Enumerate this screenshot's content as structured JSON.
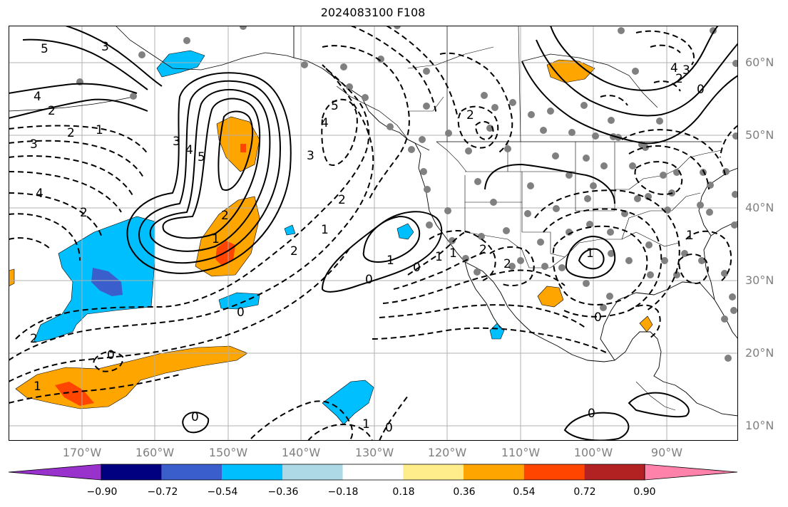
{
  "title": "2024083100 F108",
  "lat_labels": [
    "60°N",
    "50°N",
    "40°N",
    "30°N",
    "20°N",
    "10°N"
  ],
  "lon_labels": [
    "170°W",
    "160°W",
    "150°W",
    "140°W",
    "130°W",
    "120°W",
    "110°W",
    "100°W",
    "90°W"
  ],
  "colorbar": {
    "tick_labels": [
      "−0.90",
      "−0.72",
      "−0.54",
      "−0.36",
      "−0.18",
      "0.18",
      "0.36",
      "0.54",
      "0.72",
      "0.90"
    ],
    "colors": [
      "#9932cc",
      "#000080",
      "#3a5fcd",
      "#00bfff",
      "#add8e6",
      "#ffffff",
      "#ffec8b",
      "#ffa500",
      "#ff4500",
      "#b22222",
      "#ff82ab"
    ]
  },
  "contour_labels": {
    "solid": [
      "5",
      "4",
      "2",
      "3",
      "4",
      "5",
      "2",
      "1",
      "0",
      "1",
      "1",
      "0",
      "2",
      "0",
      "4",
      "3",
      "2",
      "0",
      "0"
    ],
    "dashed": [
      "3",
      "2",
      "1",
      "3",
      "4",
      "2",
      "2",
      "1",
      "0",
      "2",
      "1",
      "5",
      "4",
      "2",
      "3",
      "2",
      "1",
      "0",
      "2",
      "1",
      "0",
      "1",
      "0",
      "1"
    ]
  }
}
